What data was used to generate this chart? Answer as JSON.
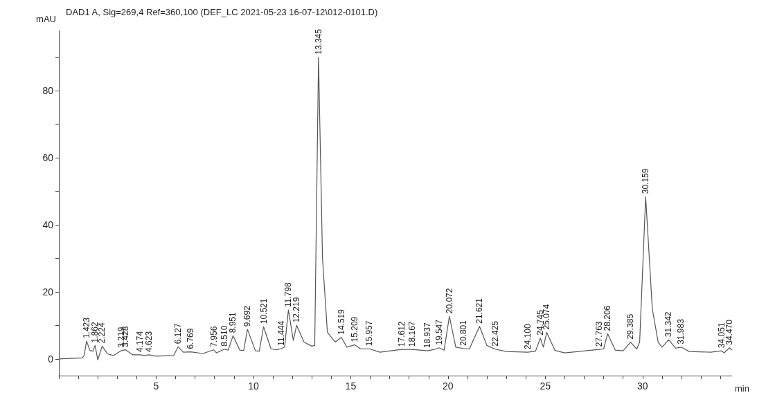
{
  "chart_data": {
    "type": "line",
    "title": "DAD1 A, Sig=269,4 Ref=360,100 (DEF_LC 2021-05-23 16-07-12\\012-0101.D)",
    "xlabel": "min",
    "ylabel": "mAU",
    "xlim": [
      0,
      34.6
    ],
    "ylim": [
      -5,
      98
    ],
    "xticks": [
      {
        "value": 0,
        "label": null
      },
      {
        "value": 1,
        "label": null
      },
      {
        "value": 2,
        "label": null
      },
      {
        "value": 3,
        "label": null
      },
      {
        "value": 4,
        "label": null
      },
      5,
      {
        "value": 6,
        "label": null
      },
      {
        "value": 7,
        "label": null
      },
      {
        "value": 8,
        "label": null
      },
      {
        "value": 9,
        "label": null
      },
      10,
      {
        "value": 11,
        "label": null
      },
      {
        "value": 12,
        "label": null
      },
      {
        "value": 13,
        "label": null
      },
      {
        "value": 14,
        "label": null
      },
      15,
      {
        "value": 16,
        "label": null
      },
      {
        "value": 17,
        "label": null
      },
      {
        "value": 18,
        "label": null
      },
      {
        "value": 19,
        "label": null
      },
      20,
      {
        "value": 21,
        "label": null
      },
      {
        "value": 22,
        "label": null
      },
      {
        "value": 23,
        "label": null
      },
      {
        "value": 24,
        "label": null
      },
      25,
      {
        "value": 26,
        "label": null
      },
      {
        "value": 27,
        "label": null
      },
      {
        "value": 28,
        "label": null
      },
      {
        "value": 29,
        "label": null
      },
      30,
      {
        "value": 31,
        "label": null
      },
      {
        "value": 32,
        "label": null
      },
      {
        "value": 33,
        "label": null
      },
      {
        "value": 34,
        "label": null
      }
    ],
    "yticks": [
      0,
      {
        "value": 10,
        "label": null
      },
      20,
      {
        "value": 30,
        "label": null
      },
      40,
      {
        "value": 50,
        "label": null
      },
      60,
      {
        "value": 70,
        "label": null
      },
      80,
      {
        "value": 90,
        "label": null
      }
    ],
    "grid": false,
    "marker": "none",
    "line_style": "solid",
    "series": [
      {
        "color": "#555555",
        "x": [
          0,
          1.2,
          1.3,
          1.423,
          1.6,
          1.75,
          1.862,
          2.0,
          2.1,
          2.224,
          2.5,
          2.8,
          3.219,
          3.428,
          3.8,
          4.174,
          4.4,
          4.623,
          5.0,
          5.9,
          6.127,
          6.4,
          6.769,
          7.4,
          7.956,
          8.1,
          8.51,
          8.7,
          8.951,
          9.3,
          9.5,
          9.692,
          10.1,
          10.3,
          10.521,
          10.9,
          11.2,
          11.444,
          11.6,
          11.798,
          12.05,
          12.219,
          12.6,
          13.0,
          13.15,
          13.345,
          13.55,
          13.8,
          14.2,
          14.519,
          14.8,
          15.209,
          15.5,
          15.957,
          16.5,
          17.612,
          18.167,
          18.937,
          19.3,
          19.547,
          19.8,
          20.072,
          20.4,
          20.801,
          21.1,
          21.621,
          22.0,
          22.425,
          23.0,
          24.1,
          24.5,
          24.745,
          24.9,
          25.074,
          25.5,
          26.0,
          27.763,
          28.0,
          28.206,
          28.6,
          29.0,
          29.385,
          29.7,
          29.85,
          30.159,
          30.5,
          30.8,
          31.0,
          31.342,
          31.7,
          31.983,
          32.4,
          33.5,
          34.051,
          34.2,
          34.47,
          34.6
        ],
        "values": [
          0,
          0.3,
          1,
          5.3,
          2.5,
          2.3,
          4.0,
          -0.3,
          1.5,
          3.8,
          1.5,
          1.0,
          2.5,
          2.7,
          1.2,
          1.2,
          1.0,
          1.2,
          0.8,
          1.0,
          3.6,
          2.0,
          2.1,
          1.6,
          2.7,
          1.8,
          2.9,
          2.6,
          6.9,
          2.6,
          2.5,
          8.8,
          2.4,
          2.3,
          9.6,
          3.0,
          2.7,
          3.1,
          3.5,
          14.6,
          5.5,
          10.0,
          5.0,
          3.8,
          4.0,
          90,
          30,
          8,
          5,
          6.4,
          3.5,
          4.2,
          3.0,
          3.0,
          2.0,
          2.8,
          2.8,
          2.4,
          2.8,
          3.3,
          2.6,
          12.7,
          3.5,
          3.1,
          3.0,
          9.7,
          4.0,
          2.9,
          2.2,
          2.0,
          2.3,
          6.2,
          3.5,
          7.9,
          2.5,
          1.8,
          2.8,
          3.0,
          7.5,
          2.6,
          2.4,
          5.0,
          2.9,
          5,
          48.4,
          15,
          5,
          3.5,
          5.7,
          3.2,
          3.5,
          2.2,
          2.0,
          2.4,
          1.8,
          3.3,
          2.6
        ]
      }
    ],
    "annotations": [
      {
        "text": "1.423",
        "x": 1.423,
        "y": 5.3
      },
      {
        "text": "1.862",
        "x": 1.862,
        "y": 4.0
      },
      {
        "text": "2.224",
        "x": 2.224,
        "y": 3.8
      },
      {
        "text": "3.219",
        "x": 3.219,
        "y": 2.5
      },
      {
        "text": "3.428",
        "x": 3.428,
        "y": 2.7
      },
      {
        "text": "4.174",
        "x": 4.174,
        "y": 1.2
      },
      {
        "text": "4.623",
        "x": 4.623,
        "y": 1.2
      },
      {
        "text": "6.127",
        "x": 6.127,
        "y": 3.6
      },
      {
        "text": "6.769",
        "x": 6.769,
        "y": 2.1
      },
      {
        "text": "7.956",
        "x": 7.956,
        "y": 2.7
      },
      {
        "text": "8.510",
        "x": 8.51,
        "y": 2.9
      },
      {
        "text": "8.951",
        "x": 8.951,
        "y": 6.9
      },
      {
        "text": "9.692",
        "x": 9.692,
        "y": 8.8
      },
      {
        "text": "10.521",
        "x": 10.521,
        "y": 9.6
      },
      {
        "text": "11.444",
        "x": 11.444,
        "y": 3.1
      },
      {
        "text": "11.798",
        "x": 11.798,
        "y": 14.6
      },
      {
        "text": "12.219",
        "x": 12.219,
        "y": 10.0
      },
      {
        "text": "13.345",
        "x": 13.345,
        "y": 90
      },
      {
        "text": "14.519",
        "x": 14.519,
        "y": 6.4
      },
      {
        "text": "15.209",
        "x": 15.209,
        "y": 4.2
      },
      {
        "text": "15.957",
        "x": 15.957,
        "y": 3.0
      },
      {
        "text": "17.612",
        "x": 17.612,
        "y": 2.8
      },
      {
        "text": "18.167",
        "x": 18.167,
        "y": 2.8
      },
      {
        "text": "18.937",
        "x": 18.937,
        "y": 2.4
      },
      {
        "text": "19.547",
        "x": 19.547,
        "y": 3.3
      },
      {
        "text": "20.072",
        "x": 20.072,
        "y": 12.7
      },
      {
        "text": "20.801",
        "x": 20.801,
        "y": 3.1
      },
      {
        "text": "21.621",
        "x": 21.621,
        "y": 9.7
      },
      {
        "text": "22.425",
        "x": 22.425,
        "y": 2.9
      },
      {
        "text": "24.100",
        "x": 24.1,
        "y": 2.0
      },
      {
        "text": "24.745",
        "x": 24.745,
        "y": 6.2
      },
      {
        "text": "25.074",
        "x": 25.074,
        "y": 7.9
      },
      {
        "text": "27.763",
        "x": 27.763,
        "y": 2.8
      },
      {
        "text": "28.206",
        "x": 28.206,
        "y": 7.5
      },
      {
        "text": "29.385",
        "x": 29.385,
        "y": 5.0
      },
      {
        "text": "30.159",
        "x": 30.159,
        "y": 48.4
      },
      {
        "text": "31.342",
        "x": 31.342,
        "y": 5.7
      },
      {
        "text": "31.983",
        "x": 31.983,
        "y": 3.5
      },
      {
        "text": "34.051",
        "x": 34.051,
        "y": 2.4
      },
      {
        "text": "34.470",
        "x": 34.47,
        "y": 3.3
      }
    ]
  }
}
